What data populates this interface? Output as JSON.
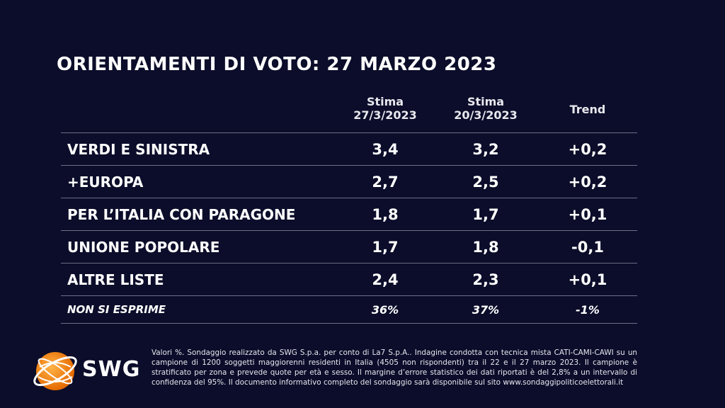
{
  "title": "ORIENTAMENTI DI VOTO: 27 MARZO 2023",
  "chart_data": {
    "type": "table",
    "columns": [
      {
        "line1": "Stima",
        "line2": "27/3/2023"
      },
      {
        "line1": "Stima",
        "line2": "20/3/2023"
      },
      {
        "line1": "Trend",
        "line2": ""
      }
    ],
    "rows": [
      {
        "label": "VERDI E SINISTRA",
        "values": [
          "3,4",
          "3,2",
          "+0,2"
        ]
      },
      {
        "label": "+EUROPA",
        "values": [
          "2,7",
          "2,5",
          "+0,2"
        ]
      },
      {
        "label": "PER L’ITALIA CON PARAGONE",
        "values": [
          "1,8",
          "1,7",
          "+0,1"
        ]
      },
      {
        "label": "UNIONE POPOLARE",
        "values": [
          "1,7",
          "1,8",
          "-0,1"
        ]
      },
      {
        "label": "ALTRE LISTE",
        "values": [
          "2,4",
          "2,3",
          "+0,1"
        ]
      },
      {
        "label": "NON SI ESPRIME",
        "values": [
          "36%",
          "37%",
          "-1%"
        ]
      }
    ]
  },
  "logo": {
    "text": "SWG",
    "colors": [
      "#f7941d",
      "#ffffff"
    ]
  },
  "footnote": "Valori %. Sondaggio realizzato da SWG S.p.a. per conto di La7 S.p.A.. Indagine condotta con tecnica mista CATI-CAMI-CAWI su un campione di 1200 soggetti maggiorenni residenti in Italia (4505 non rispondenti) tra il 22 e il 27 marzo 2023. Il campione è stratificato per zona e prevede quote per età e sesso. Il margine d’errore statistico dei dati riportati è del 2,8% a un intervallo di confidenza del 95%. Il documento informativo completo del sondaggio sarà disponibile sul sito www.sondaggipoliticoelettorali.it",
  "colors": {
    "background": "#0b0d2a",
    "text": "#ffffff",
    "divider": "#6d6f86"
  }
}
